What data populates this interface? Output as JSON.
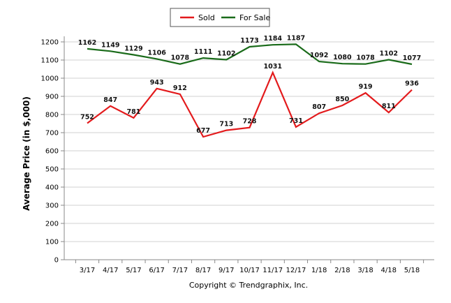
{
  "chart_data": {
    "type": "line",
    "categories": [
      "3/17",
      "4/17",
      "5/17",
      "6/17",
      "7/17",
      "8/17",
      "9/17",
      "10/17",
      "11/17",
      "12/17",
      "1/18",
      "2/18",
      "3/18",
      "4/18",
      "5/18"
    ],
    "series": [
      {
        "name": "Sold",
        "color": "#e31a1c",
        "values": [
          752,
          847,
          781,
          943,
          912,
          677,
          713,
          728,
          1031,
          731,
          807,
          850,
          919,
          811,
          936
        ]
      },
      {
        "name": "For Sale",
        "color": "#1a6b1a",
        "values": [
          1162,
          1149,
          1129,
          1106,
          1078,
          1111,
          1102,
          1173,
          1184,
          1187,
          1092,
          1080,
          1078,
          1102,
          1077
        ]
      }
    ],
    "ylabel": "Average Price (in $,000)",
    "yticks": [
      "0",
      "100",
      "200",
      "300",
      "400",
      "500",
      "600",
      "700",
      "800",
      "900",
      "1000",
      "1100",
      "1200"
    ],
    "ylim": [
      0,
      1200
    ],
    "grid": true,
    "legend": "top-center"
  },
  "footer": "Copyright © Trendgraphix, Inc."
}
